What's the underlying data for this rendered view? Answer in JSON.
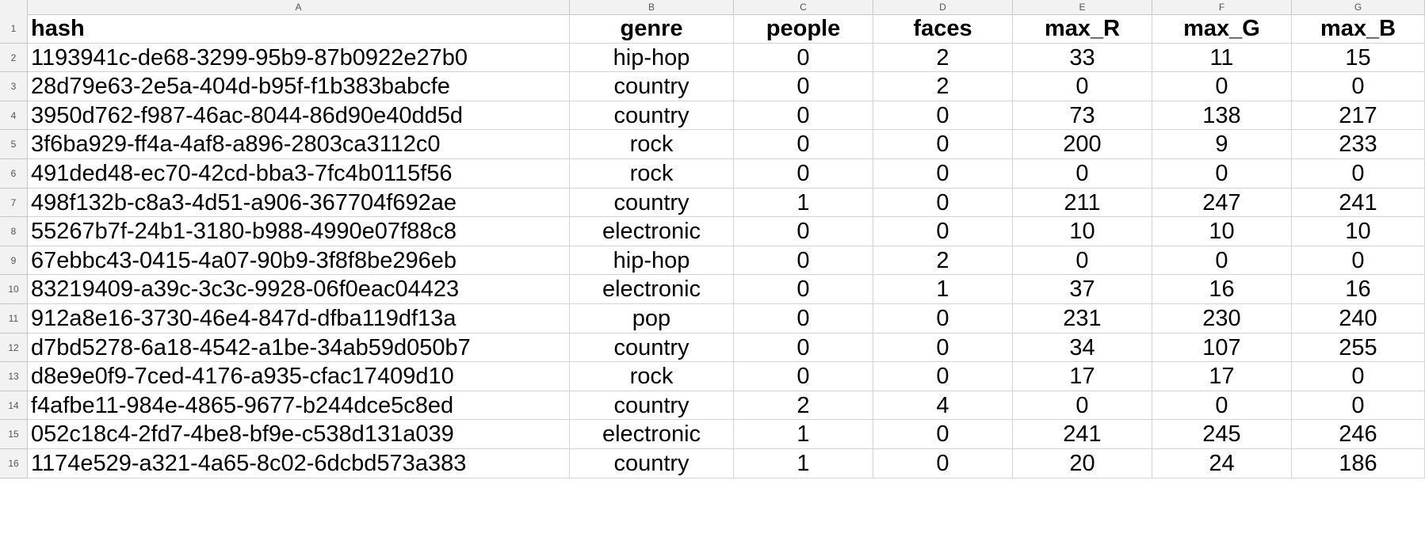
{
  "columns": [
    "A",
    "B",
    "C",
    "D",
    "E",
    "F",
    "G"
  ],
  "row_numbers": [
    "1",
    "2",
    "3",
    "4",
    "5",
    "6",
    "7",
    "8",
    "9",
    "10",
    "11",
    "12",
    "13",
    "14",
    "15",
    "16"
  ],
  "header": [
    "hash",
    "genre",
    "people",
    "faces",
    "max_R",
    "max_G",
    "max_B"
  ],
  "rows": [
    [
      "1193941c-de68-3299-95b9-87b0922e27b0",
      "hip-hop",
      "0",
      "2",
      "33",
      "11",
      "15"
    ],
    [
      "28d79e63-2e5a-404d-b95f-f1b383babcfe",
      "country",
      "0",
      "2",
      "0",
      "0",
      "0"
    ],
    [
      "3950d762-f987-46ac-8044-86d90e40dd5d",
      "country",
      "0",
      "0",
      "73",
      "138",
      "217"
    ],
    [
      "3f6ba929-ff4a-4af8-a896-2803ca3112c0",
      "rock",
      "0",
      "0",
      "200",
      "9",
      "233"
    ],
    [
      "491ded48-ec70-42cd-bba3-7fc4b0115f56",
      "rock",
      "0",
      "0",
      "0",
      "0",
      "0"
    ],
    [
      "498f132b-c8a3-4d51-a906-367704f692ae",
      "country",
      "1",
      "0",
      "211",
      "247",
      "241"
    ],
    [
      "55267b7f-24b1-3180-b988-4990e07f88c8",
      "electronic",
      "0",
      "0",
      "10",
      "10",
      "10"
    ],
    [
      "67ebbc43-0415-4a07-90b9-3f8f8be296eb",
      "hip-hop",
      "0",
      "2",
      "0",
      "0",
      "0"
    ],
    [
      "83219409-a39c-3c3c-9928-06f0eac04423",
      "electronic",
      "0",
      "1",
      "37",
      "16",
      "16"
    ],
    [
      "912a8e16-3730-46e4-847d-dfba119df13a",
      "pop",
      "0",
      "0",
      "231",
      "230",
      "240"
    ],
    [
      "d7bd5278-6a18-4542-a1be-34ab59d050b7",
      "country",
      "0",
      "0",
      "34",
      "107",
      "255"
    ],
    [
      "d8e9e0f9-7ced-4176-a935-cfac17409d10",
      "rock",
      "0",
      "0",
      "17",
      "17",
      "0"
    ],
    [
      "f4afbe11-984e-4865-9677-b244dce5c8ed",
      "country",
      "2",
      "4",
      "0",
      "0",
      "0"
    ],
    [
      "052c18c4-2fd7-4be8-bf9e-c538d131a039",
      "electronic",
      "1",
      "0",
      "241",
      "245",
      "246"
    ],
    [
      "1174e529-a321-4a65-8c02-6dcbd573a383",
      "country",
      "1",
      "0",
      "20",
      "24",
      "186"
    ]
  ]
}
